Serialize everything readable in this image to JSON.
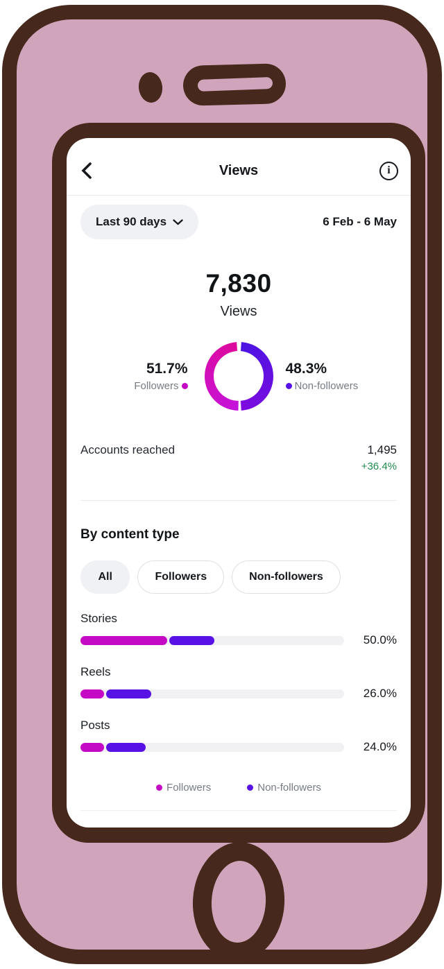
{
  "theme": {
    "phone_body": "#D0A5BB",
    "phone_outline": "#46281C",
    "followers_color": "#C50AC5",
    "nonfollowers_color": "#5812E6",
    "followers_gradient": [
      "#DE0A9C",
      "#C414DB"
    ],
    "nonfollowers_gradient": [
      "#4B14E2",
      "#7D0BE0"
    ],
    "positive_green": "#1F8A4C",
    "muted_text": "#767B85",
    "track_gray": "#F1F1F3",
    "chip_gray": "#F0F1F4",
    "chip_border": "#DCDFE3",
    "divider": "#E9E9EB"
  },
  "icons": {
    "back": "chevron-left",
    "info": "info-circle",
    "range_chevron": "chevron-down"
  },
  "header": {
    "title": "Views"
  },
  "filter_bar": {
    "range_label": "Last 90 days",
    "date_range": "6 Feb - 6 May"
  },
  "summary": {
    "total_views": "7,830",
    "total_label": "Views"
  },
  "donut": {
    "left": {
      "pct": "51.7%",
      "label": "Followers"
    },
    "right": {
      "pct": "48.3%",
      "label": "Non-followers"
    },
    "left_value": 51.7,
    "right_value": 48.3
  },
  "accounts_reached": {
    "label": "Accounts reached",
    "value": "1,495",
    "delta": "+36.4%"
  },
  "by_content_type": {
    "heading": "By content type",
    "tabs": [
      {
        "label": "All",
        "active": true
      },
      {
        "label": "Followers",
        "active": false
      },
      {
        "label": "Non-followers",
        "active": false
      }
    ],
    "bars": [
      {
        "label": "Stories",
        "followers_pct": 33,
        "nonfollowers_pct": 17,
        "total_label": "50.0%"
      },
      {
        "label": "Reels",
        "followers_pct": 9,
        "nonfollowers_pct": 17,
        "total_label": "26.0%"
      },
      {
        "label": "Posts",
        "followers_pct": 9,
        "nonfollowers_pct": 15,
        "total_label": "24.0%"
      }
    ],
    "legend": [
      {
        "label": "Followers",
        "series": "followers"
      },
      {
        "label": "Non-followers",
        "series": "nonfollowers"
      }
    ]
  },
  "chart_data": [
    {
      "type": "pie",
      "title": "Views by follower status",
      "labels": [
        "Followers",
        "Non-followers"
      ],
      "values": [
        51.7,
        48.3
      ],
      "unit": "%",
      "colors": [
        "#C50AC5",
        "#5812E6"
      ],
      "donut": true
    },
    {
      "type": "bar",
      "title": "By content type",
      "categories": [
        "Stories",
        "Reels",
        "Posts"
      ],
      "series": [
        {
          "name": "Followers",
          "values": [
            33,
            9,
            9
          ]
        },
        {
          "name": "Non-followers",
          "values": [
            17,
            17,
            15
          ]
        }
      ],
      "totals": [
        "50.0%",
        "26.0%",
        "24.0%"
      ],
      "unit": "% of total views",
      "xlim": [
        0,
        100
      ],
      "orientation": "horizontal",
      "legend_position": "bottom"
    }
  ]
}
